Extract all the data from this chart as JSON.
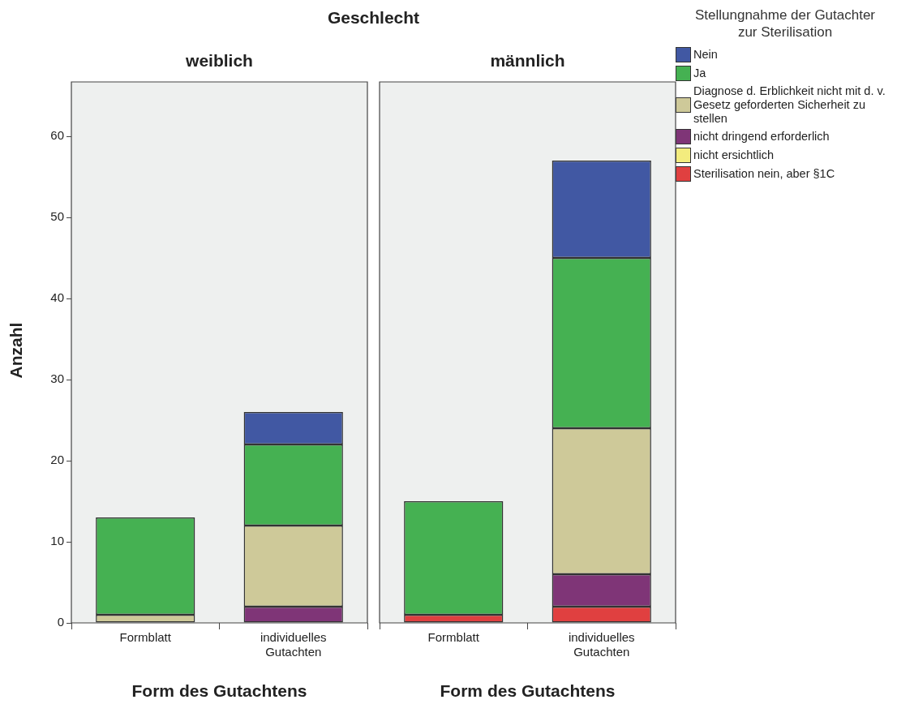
{
  "chart_data": [
    {
      "type": "bar",
      "title": "Geschlecht",
      "subtitle": "weiblich",
      "xlabel": "Form des Gutachtens",
      "ylabel": "Anzahl",
      "categories": [
        "Formblatt",
        "individuelles Gutachten"
      ],
      "stacked": true,
      "ylim": [
        0,
        66.7
      ],
      "yticks": [
        0,
        10,
        20,
        30,
        40,
        50,
        60
      ],
      "legend": "right",
      "legend_title": "Stellungnahme der Gutachter zur Sterilisation",
      "series": [
        {
          "name": "Sterilisation nein, aber §1C",
          "color": "#e04040",
          "values": [
            0,
            0
          ]
        },
        {
          "name": "nicht ersichtlich",
          "color": "#f3ec7e",
          "values": [
            0,
            0
          ]
        },
        {
          "name": "nicht dringend erforderlich",
          "color": "#7f3577",
          "values": [
            0,
            2
          ]
        },
        {
          "name": "Diagnose d. Erblichkeit nicht mit d. v. Gesetz geforderten Sicherheit zu stellen",
          "color": "#cec999",
          "values": [
            1,
            10
          ]
        },
        {
          "name": "Ja",
          "color": "#45b152",
          "values": [
            12,
            10
          ]
        },
        {
          "name": "Nein",
          "color": "#4158a3",
          "values": [
            0,
            4
          ]
        }
      ]
    },
    {
      "type": "bar",
      "subtitle": "männlich",
      "xlabel": "Form des Gutachtens",
      "categories": [
        "Formblatt",
        "individuelles Gutachten"
      ],
      "stacked": true,
      "ylim": [
        0,
        66.7
      ],
      "yticks": [
        0,
        10,
        20,
        30,
        40,
        50,
        60
      ],
      "tick_labels": "x",
      "series": [
        {
          "color": "#e04040",
          "values": [
            1,
            2
          ]
        },
        {
          "color": "#f3ec7e",
          "values": [
            0,
            0
          ]
        },
        {
          "color": "#7f3577",
          "values": [
            0,
            4
          ]
        },
        {
          "color": "#cec999",
          "values": [
            0,
            18
          ]
        },
        {
          "color": "#45b152",
          "values": [
            14,
            21
          ]
        },
        {
          "color": "#4158a3",
          "values": [
            0,
            12
          ]
        }
      ]
    }
  ]
}
